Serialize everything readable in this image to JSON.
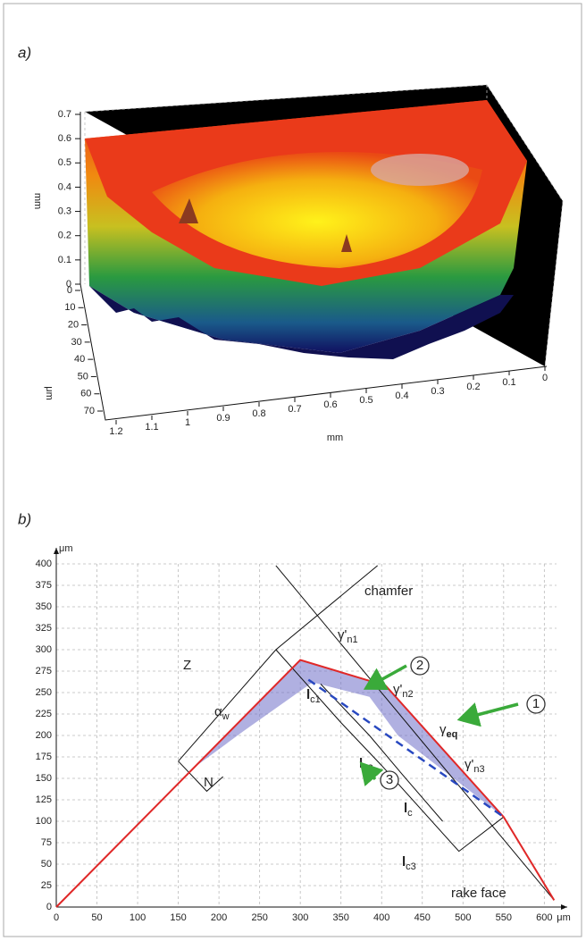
{
  "chart_data": [
    {
      "type": "surface",
      "panel_label": "a)",
      "zlabel": "mm",
      "zticks": [
        0,
        0.1,
        0.2,
        0.3,
        0.4,
        0.5,
        0.6,
        0.7
      ],
      "depthlabel": "μm",
      "depthticks": [
        0,
        10,
        20,
        30,
        40,
        50,
        60,
        70
      ],
      "xlabel": "mm",
      "xticks": [
        1.2,
        1.1,
        1,
        0.9,
        0.8,
        0.7,
        0.6,
        0.5,
        0.4,
        0.3,
        0.2,
        0.1,
        0
      ]
    },
    {
      "type": "line",
      "panel_label": "b)",
      "y_unit": "μm",
      "x_unit": "μm",
      "xlim": [
        0,
        615
      ],
      "xticks": [
        0,
        50,
        100,
        150,
        200,
        250,
        300,
        350,
        400,
        450,
        500,
        550,
        600
      ],
      "ylim": [
        0,
        400
      ],
      "yticks": [
        0,
        25,
        50,
        75,
        100,
        125,
        150,
        175,
        200,
        225,
        250,
        275,
        300,
        325,
        350,
        375,
        400
      ],
      "grid": true,
      "series": [
        {
          "color": "#e02828",
          "x": [
            0,
            300,
            405,
            550,
            612
          ],
          "values": [
            0,
            288,
            258,
            105,
            8
          ]
        },
        {
          "color": "#2848c0",
          "dashed": true,
          "x": [
            310,
            550
          ],
          "values": [
            265,
            105
          ]
        }
      ],
      "annotations": [
        {
          "text": "chamfer"
        },
        {
          "text": "Z"
        },
        {
          "text": "N"
        },
        {
          "text": "α",
          "sub": "w"
        },
        {
          "text": "γ'",
          "sub": "n1"
        },
        {
          "text": "γ'",
          "sub": "n2"
        },
        {
          "text": "γ",
          "sub": "eq"
        },
        {
          "text": "γ'",
          "sub": "n3"
        },
        {
          "text": "l",
          "sub": "c1"
        },
        {
          "text": "l",
          "sub": "c2"
        },
        {
          "text": "l",
          "sub": "c"
        },
        {
          "text": "l",
          "sub": "c3"
        },
        {
          "text": "rake face"
        },
        {
          "text": "1"
        },
        {
          "text": "2"
        },
        {
          "text": "3"
        }
      ]
    }
  ]
}
